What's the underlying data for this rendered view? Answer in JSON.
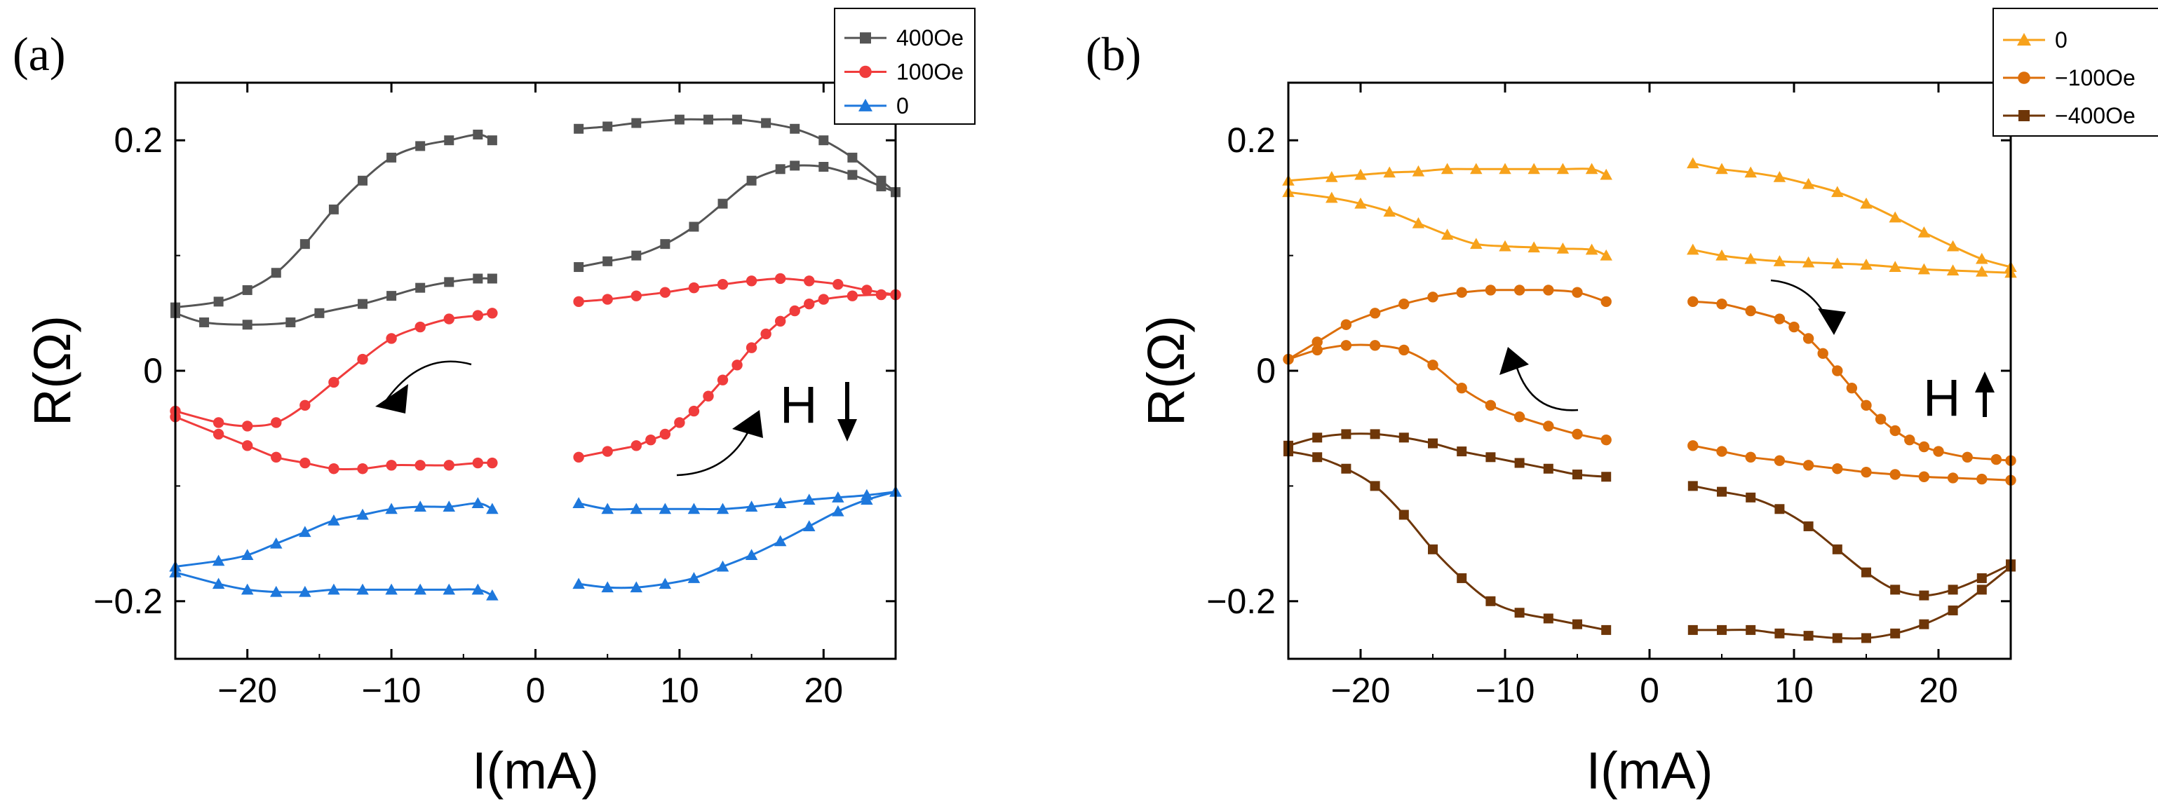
{
  "chart_data": [
    {
      "type": "scatter",
      "panel_label": "(a)",
      "xlabel": "I(mA)",
      "ylabel": "R(Ω)",
      "xlim": [
        -25,
        25
      ],
      "ylim": [
        -0.25,
        0.25
      ],
      "xticks": [
        -20,
        -10,
        0,
        10,
        20
      ],
      "xtick_labels": [
        "−20",
        "−10",
        "0",
        "10",
        "20"
      ],
      "yticks": [
        -0.2,
        0,
        0.2
      ],
      "ytick_labels": [
        "−0.2",
        "0",
        "0.2"
      ],
      "grid": false,
      "legend_position": "top-right",
      "field_label": "H",
      "field_direction": "down",
      "series": [
        {
          "name": "400Oe",
          "color": "#555555",
          "marker": "square",
          "branches": [
            {
              "x": [
                -25,
                -22,
                -20,
                -18,
                -16,
                -14,
                -12,
                -10,
                -8,
                -6,
                -4,
                -3
              ],
              "y": [
                0.055,
                0.06,
                0.07,
                0.085,
                0.11,
                0.14,
                0.165,
                0.185,
                0.195,
                0.2,
                0.205,
                0.2
              ]
            },
            {
              "x": [
                -25,
                -23,
                -20,
                -17,
                -15,
                -12,
                -10,
                -8,
                -6,
                -4,
                -3
              ],
              "y": [
                0.05,
                0.042,
                0.04,
                0.042,
                0.05,
                0.058,
                0.065,
                0.072,
                0.077,
                0.08,
                0.08
              ]
            },
            {
              "x": [
                3,
                5,
                7,
                10,
                12,
                14,
                16,
                18,
                20,
                22,
                24,
                25
              ],
              "y": [
                0.21,
                0.212,
                0.215,
                0.218,
                0.218,
                0.218,
                0.215,
                0.21,
                0.2,
                0.185,
                0.165,
                0.155
              ]
            },
            {
              "x": [
                3,
                5,
                7,
                9,
                11,
                13,
                15,
                17,
                18,
                20,
                22,
                24,
                25
              ],
              "y": [
                0.09,
                0.095,
                0.1,
                0.11,
                0.125,
                0.145,
                0.165,
                0.175,
                0.178,
                0.177,
                0.17,
                0.16,
                0.155
              ]
            }
          ]
        },
        {
          "name": "100Oe",
          "color": "#f03c3c",
          "marker": "circle",
          "branches": [
            {
              "x": [
                -25,
                -22,
                -20,
                -18,
                -16,
                -14,
                -12,
                -10,
                -8,
                -6,
                -4,
                -3
              ],
              "y": [
                -0.035,
                -0.045,
                -0.048,
                -0.045,
                -0.03,
                -0.01,
                0.01,
                0.028,
                0.038,
                0.045,
                0.048,
                0.05
              ]
            },
            {
              "x": [
                -25,
                -22,
                -20,
                -18,
                -16,
                -14,
                -12,
                -10,
                -8,
                -6,
                -4,
                -3
              ],
              "y": [
                -0.04,
                -0.055,
                -0.065,
                -0.075,
                -0.08,
                -0.085,
                -0.085,
                -0.082,
                -0.082,
                -0.082,
                -0.08,
                -0.08
              ]
            },
            {
              "x": [
                3,
                5,
                7,
                9,
                11,
                13,
                15,
                17,
                19,
                21,
                23,
                25
              ],
              "y": [
                0.06,
                0.062,
                0.065,
                0.068,
                0.072,
                0.075,
                0.078,
                0.08,
                0.078,
                0.075,
                0.07,
                0.066
              ]
            },
            {
              "x": [
                3,
                5,
                7,
                8,
                9,
                10,
                11,
                12,
                13,
                14,
                15,
                16,
                17,
                18,
                19,
                20,
                22,
                24,
                25
              ],
              "y": [
                -0.075,
                -0.07,
                -0.065,
                -0.06,
                -0.055,
                -0.045,
                -0.035,
                -0.022,
                -0.008,
                0.005,
                0.02,
                0.032,
                0.043,
                0.052,
                0.058,
                0.062,
                0.065,
                0.066,
                0.066
              ]
            }
          ]
        },
        {
          "name": "0",
          "color": "#1e78dc",
          "marker": "triangle",
          "branches": [
            {
              "x": [
                -25,
                -22,
                -20,
                -18,
                -16,
                -14,
                -12,
                -10,
                -8,
                -6,
                -4,
                -3
              ],
              "y": [
                -0.17,
                -0.165,
                -0.16,
                -0.15,
                -0.14,
                -0.13,
                -0.125,
                -0.12,
                -0.118,
                -0.118,
                -0.115,
                -0.12
              ]
            },
            {
              "x": [
                -25,
                -22,
                -20,
                -18,
                -16,
                -14,
                -12,
                -10,
                -8,
                -6,
                -4,
                -3
              ],
              "y": [
                -0.175,
                -0.185,
                -0.19,
                -0.192,
                -0.192,
                -0.19,
                -0.19,
                -0.19,
                -0.19,
                -0.19,
                -0.19,
                -0.195
              ]
            },
            {
              "x": [
                3,
                5,
                7,
                9,
                11,
                13,
                15,
                17,
                19,
                21,
                23,
                25
              ],
              "y": [
                -0.115,
                -0.12,
                -0.12,
                -0.12,
                -0.12,
                -0.12,
                -0.118,
                -0.115,
                -0.112,
                -0.11,
                -0.108,
                -0.105
              ]
            },
            {
              "x": [
                3,
                5,
                7,
                9,
                11,
                13,
                15,
                17,
                19,
                21,
                23,
                25
              ],
              "y": [
                -0.185,
                -0.188,
                -0.188,
                -0.185,
                -0.18,
                -0.17,
                -0.16,
                -0.148,
                -0.135,
                -0.122,
                -0.112,
                -0.105
              ]
            }
          ]
        }
      ]
    },
    {
      "type": "scatter",
      "panel_label": "(b)",
      "xlabel": "I(mA)",
      "ylabel": "R(Ω)",
      "xlim": [
        -25,
        25
      ],
      "ylim": [
        -0.25,
        0.25
      ],
      "xticks": [
        -20,
        -10,
        0,
        10,
        20
      ],
      "xtick_labels": [
        "−20",
        "−10",
        "0",
        "10",
        "20"
      ],
      "yticks": [
        -0.2,
        0,
        0.2
      ],
      "ytick_labels": [
        "−0.2",
        "0",
        "0.2"
      ],
      "grid": false,
      "legend_position": "top-right",
      "field_label": "H",
      "field_direction": "up",
      "series": [
        {
          "name": "0",
          "color": "#f7a21b",
          "marker": "triangle",
          "branches": [
            {
              "x": [
                -25,
                -22,
                -20,
                -18,
                -16,
                -14,
                -12,
                -10,
                -8,
                -6,
                -4,
                -3
              ],
              "y": [
                0.165,
                0.168,
                0.17,
                0.172,
                0.173,
                0.175,
                0.175,
                0.175,
                0.175,
                0.175,
                0.175,
                0.17
              ]
            },
            {
              "x": [
                -25,
                -22,
                -20,
                -18,
                -16,
                -14,
                -12,
                -10,
                -8,
                -6,
                -4,
                -3
              ],
              "y": [
                0.155,
                0.15,
                0.145,
                0.138,
                0.128,
                0.118,
                0.11,
                0.108,
                0.107,
                0.106,
                0.105,
                0.1
              ]
            },
            {
              "x": [
                3,
                5,
                7,
                9,
                11,
                13,
                15,
                17,
                19,
                21,
                23,
                25
              ],
              "y": [
                0.18,
                0.175,
                0.172,
                0.168,
                0.162,
                0.155,
                0.145,
                0.133,
                0.12,
                0.108,
                0.097,
                0.09
              ]
            },
            {
              "x": [
                3,
                5,
                7,
                9,
                11,
                13,
                15,
                17,
                19,
                21,
                23,
                25
              ],
              "y": [
                0.105,
                0.1,
                0.097,
                0.095,
                0.094,
                0.093,
                0.092,
                0.09,
                0.088,
                0.087,
                0.086,
                0.085
              ]
            }
          ]
        },
        {
          "name": "−100Oe",
          "color": "#dc6e0a",
          "marker": "circle",
          "branches": [
            {
              "x": [
                -25,
                -23,
                -21,
                -19,
                -17,
                -15,
                -13,
                -11,
                -9,
                -7,
                -5,
                -3
              ],
              "y": [
                0.01,
                0.025,
                0.04,
                0.05,
                0.058,
                0.064,
                0.068,
                0.07,
                0.07,
                0.07,
                0.068,
                0.06
              ]
            },
            {
              "x": [
                -25,
                -23,
                -21,
                -19,
                -17,
                -15,
                -13,
                -11,
                -9,
                -7,
                -5,
                -3
              ],
              "y": [
                0.01,
                0.018,
                0.022,
                0.022,
                0.018,
                0.005,
                -0.015,
                -0.03,
                -0.04,
                -0.048,
                -0.055,
                -0.06
              ]
            },
            {
              "x": [
                3,
                5,
                7,
                9,
                10,
                11,
                12,
                13,
                14,
                15,
                16,
                17,
                18,
                19,
                20,
                22,
                24,
                25
              ],
              "y": [
                0.06,
                0.058,
                0.052,
                0.045,
                0.038,
                0.028,
                0.015,
                0.0,
                -0.015,
                -0.03,
                -0.042,
                -0.052,
                -0.06,
                -0.066,
                -0.07,
                -0.075,
                -0.077,
                -0.078
              ]
            },
            {
              "x": [
                3,
                5,
                7,
                9,
                11,
                13,
                15,
                17,
                19,
                21,
                23,
                25
              ],
              "y": [
                -0.065,
                -0.07,
                -0.075,
                -0.078,
                -0.082,
                -0.085,
                -0.088,
                -0.09,
                -0.092,
                -0.093,
                -0.094,
                -0.095
              ]
            }
          ]
        },
        {
          "name": "−400Oe",
          "color": "#6e3608",
          "marker": "square",
          "branches": [
            {
              "x": [
                -25,
                -23,
                -21,
                -19,
                -17,
                -15,
                -13,
                -11,
                -9,
                -7,
                -5,
                -3
              ],
              "y": [
                -0.065,
                -0.058,
                -0.055,
                -0.055,
                -0.058,
                -0.063,
                -0.07,
                -0.075,
                -0.08,
                -0.085,
                -0.09,
                -0.092
              ]
            },
            {
              "x": [
                -25,
                -23,
                -21,
                -19,
                -17,
                -15,
                -13,
                -11,
                -9,
                -7,
                -5,
                -3
              ],
              "y": [
                -0.07,
                -0.075,
                -0.085,
                -0.1,
                -0.125,
                -0.155,
                -0.18,
                -0.2,
                -0.21,
                -0.215,
                -0.22,
                -0.225
              ]
            },
            {
              "x": [
                3,
                5,
                7,
                9,
                11,
                13,
                15,
                17,
                19,
                21,
                23,
                25
              ],
              "y": [
                -0.1,
                -0.105,
                -0.11,
                -0.12,
                -0.135,
                -0.155,
                -0.175,
                -0.19,
                -0.195,
                -0.19,
                -0.18,
                -0.168
              ]
            },
            {
              "x": [
                3,
                5,
                7,
                9,
                11,
                13,
                15,
                17,
                19,
                21,
                23,
                25
              ],
              "y": [
                -0.225,
                -0.225,
                -0.225,
                -0.228,
                -0.23,
                -0.232,
                -0.232,
                -0.228,
                -0.22,
                -0.208,
                -0.19,
                -0.17
              ]
            }
          ]
        }
      ]
    }
  ]
}
